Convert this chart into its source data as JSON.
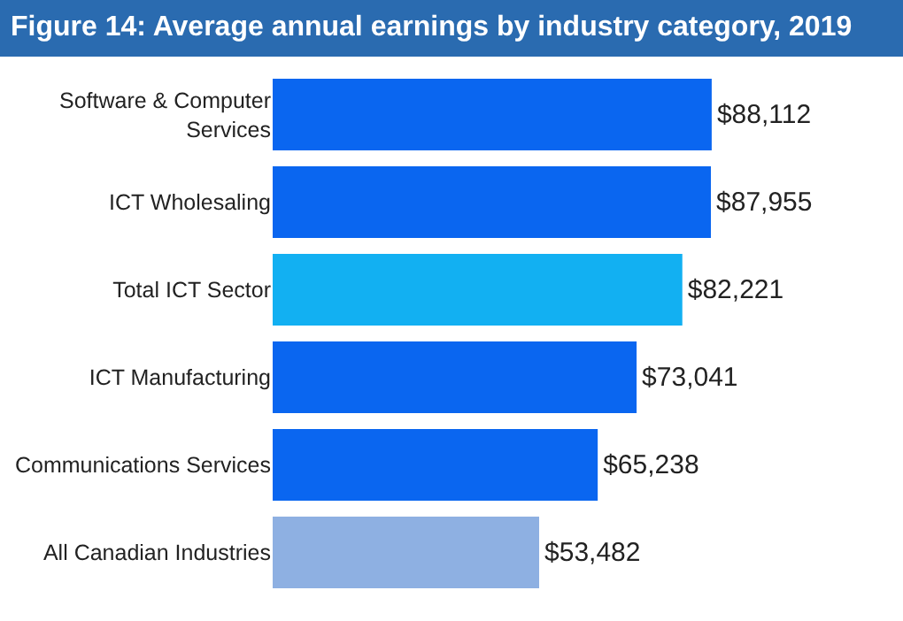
{
  "chart_data": {
    "type": "bar",
    "orientation": "horizontal",
    "title": "Figure 14: Average annual earnings by industry category, 2019",
    "categories": [
      "Software & Computer Services",
      "ICT Wholesaling",
      "Total ICT Sector",
      "ICT Manufacturing",
      "Communications Services",
      "All Canadian Industries"
    ],
    "values": [
      88112,
      87955,
      82221,
      73041,
      65238,
      53482
    ],
    "colors": [
      "#0a66f0",
      "#0a66f0",
      "#12b0f2",
      "#0a66f0",
      "#0a66f0",
      "#8eb0e2"
    ],
    "value_labels": [
      "$88,112",
      "$87,955",
      "$82,221",
      "$73,041",
      "$65,238",
      "$53,482"
    ],
    "grid": false
  }
}
